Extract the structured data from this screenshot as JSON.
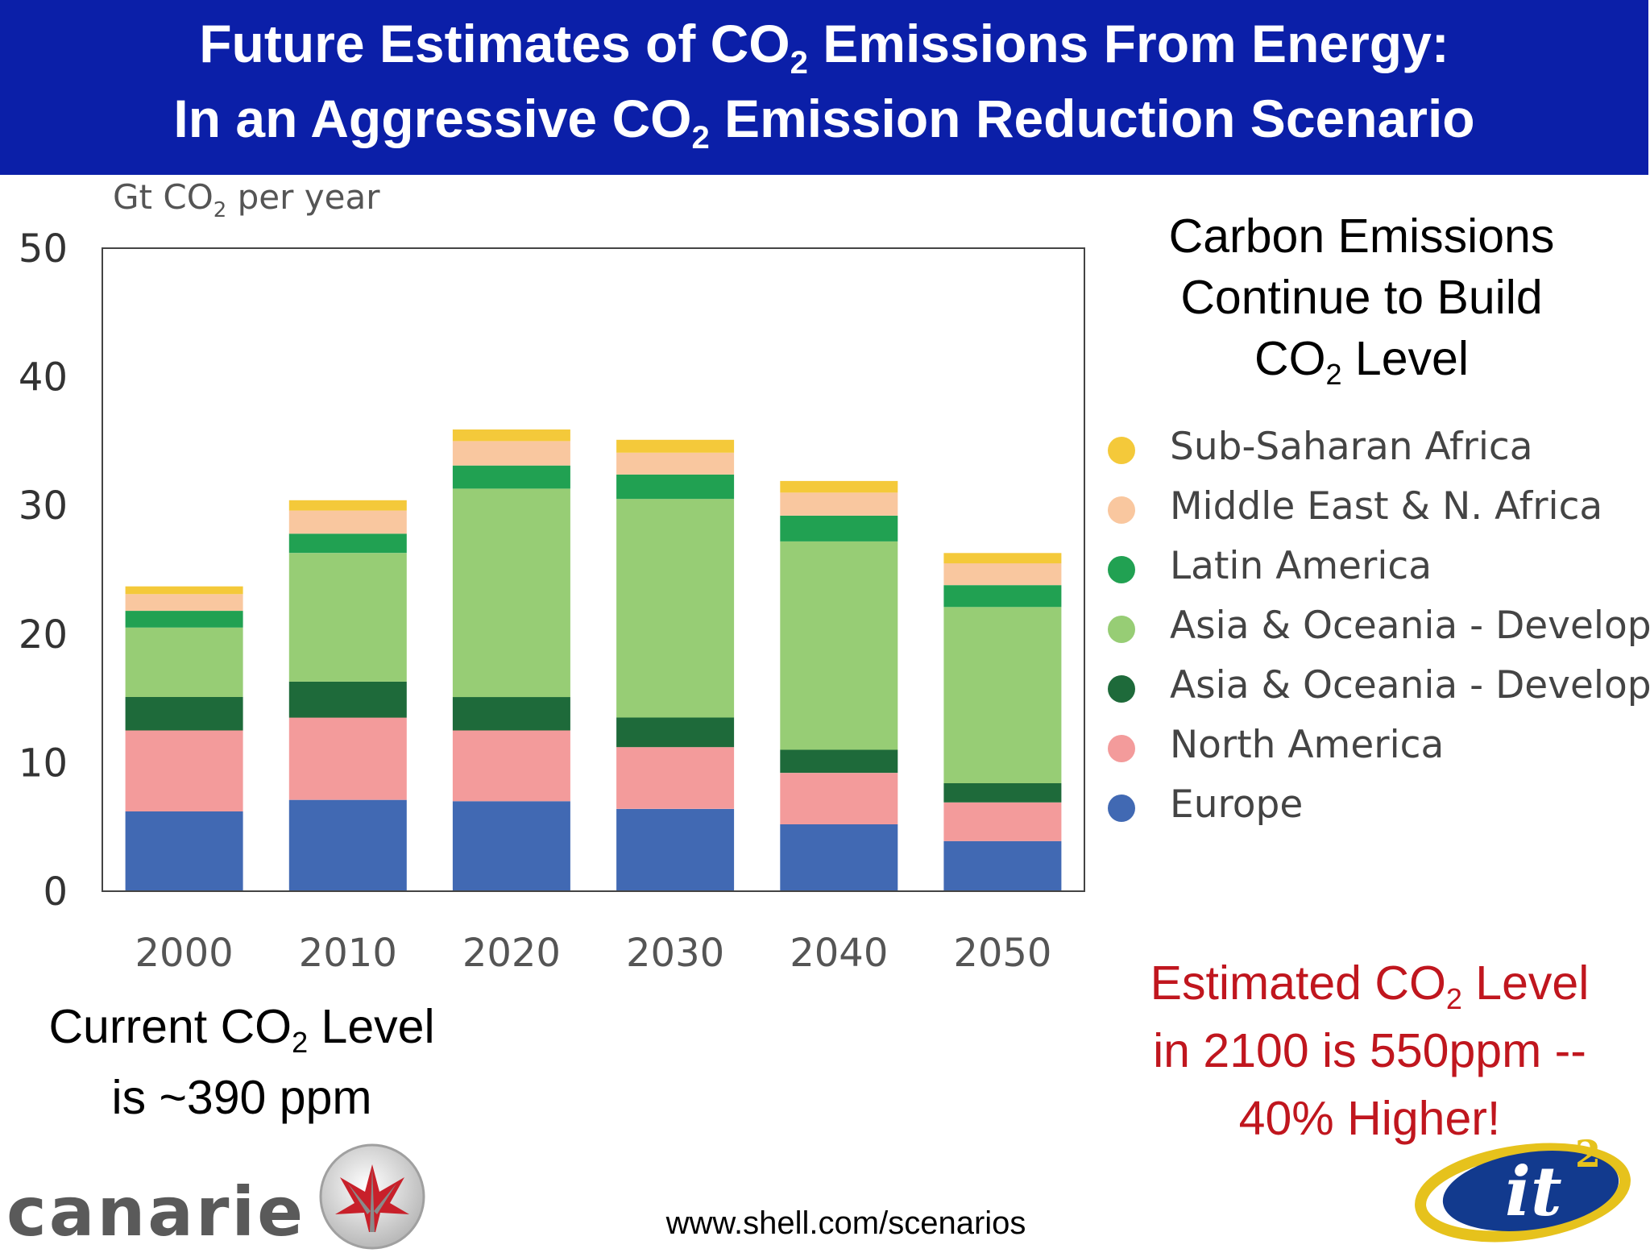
{
  "title": {
    "line1_pre": "Future Estimates of CO",
    "line1_sub": "2",
    "line1_post": " Emissions From Energy:",
    "line2_pre": "In an Aggressive CO",
    "line2_sub": "2",
    "line2_post": " Emission Reduction Scenario"
  },
  "unit_label": {
    "pre": "Gt CO",
    "sub": "2",
    "post": " per year"
  },
  "headline": {
    "line1": "Carbon Emissions",
    "line2": "Continue to Build",
    "line3_pre": "CO",
    "line3_sub": "2",
    "line3_post": " Level"
  },
  "current_level": {
    "line1_pre": "Current CO",
    "line1_sub": "2",
    "line1_post": " Level",
    "line2": "is ~390 ppm"
  },
  "estimate": {
    "line1_pre": "Estimated CO",
    "line1_sub": "2",
    "line1_post": " Level",
    "line2": "in 2100 is 550ppm --",
    "line3": "40% Higher!"
  },
  "source_url": "www.shell.com/scenarios",
  "logos": {
    "canarie": "canarie",
    "it2_text": "it",
    "it2_sup": "2"
  },
  "colors": {
    "banner": "#0b1fa8",
    "estimate_text": "#c0161e"
  },
  "chart_data": {
    "type": "bar",
    "stacked": true,
    "ylabel": "Gt CO2 per year",
    "ylim": [
      0,
      50
    ],
    "yticks": [
      0,
      10,
      20,
      30,
      40,
      50
    ],
    "categories": [
      "2000",
      "2010",
      "2020",
      "2030",
      "2040",
      "2050"
    ],
    "legend_position": "right",
    "grid": false,
    "series": [
      {
        "name": "Europe",
        "color": "#4169b3",
        "values": [
          6.2,
          7.1,
          7.0,
          6.4,
          5.2,
          3.9
        ]
      },
      {
        "name": "North America",
        "color": "#f39b9b",
        "values": [
          6.3,
          6.4,
          5.5,
          4.8,
          4.0,
          3.0
        ]
      },
      {
        "name": "Asia & Oceania - Developed",
        "color": "#1e6a3a",
        "values": [
          2.6,
          2.8,
          2.6,
          2.3,
          1.8,
          1.5
        ]
      },
      {
        "name": "Asia & Oceania - Developing",
        "color": "#97cd75",
        "values": [
          5.4,
          10.0,
          16.2,
          17.0,
          16.2,
          13.7
        ]
      },
      {
        "name": "Latin America",
        "color": "#21a152",
        "values": [
          1.3,
          1.5,
          1.8,
          1.9,
          2.0,
          1.7
        ]
      },
      {
        "name": "Middle East & N. Africa",
        "color": "#f9c79f",
        "values": [
          1.3,
          1.8,
          1.9,
          1.7,
          1.8,
          1.7
        ]
      },
      {
        "name": "Sub-Saharan Africa",
        "color": "#f4c93a",
        "values": [
          0.6,
          0.8,
          0.9,
          1.0,
          0.9,
          0.8
        ]
      }
    ]
  }
}
